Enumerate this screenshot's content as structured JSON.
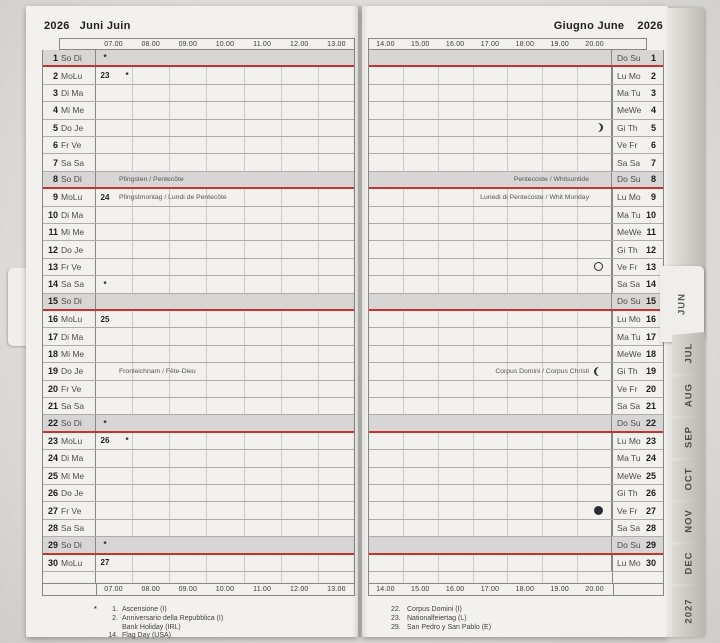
{
  "left_page": {
    "year": "2026",
    "months": "Juni Juin",
    "time_labels": [
      "07.00",
      "08.00",
      "09.00",
      "10.00",
      "11.00",
      "12.00",
      "13.00"
    ],
    "days": [
      {
        "n": "1",
        "label": "So Di",
        "sun": true,
        "m1": "*"
      },
      {
        "n": "2",
        "label": "MoLu",
        "m1": "23",
        "m2": "*"
      },
      {
        "n": "3",
        "label": "Di Ma"
      },
      {
        "n": "4",
        "label": "Mi Me"
      },
      {
        "n": "5",
        "label": "Do Je"
      },
      {
        "n": "6",
        "label": "Fr Ve"
      },
      {
        "n": "7",
        "label": "Sa Sa"
      },
      {
        "n": "8",
        "label": "So Di",
        "sun": true,
        "note": "Pfingsten / Pentecôte"
      },
      {
        "n": "9",
        "label": "MoLu",
        "m1": "24",
        "note": "Pfingstmontag / Lundi de Pentecôte"
      },
      {
        "n": "10",
        "label": "Di Ma"
      },
      {
        "n": "11",
        "label": "Mi Me"
      },
      {
        "n": "12",
        "label": "Do Je"
      },
      {
        "n": "13",
        "label": "Fr Ve"
      },
      {
        "n": "14",
        "label": "Sa Sa",
        "m1": "*"
      },
      {
        "n": "15",
        "label": "So Di",
        "sun": true
      },
      {
        "n": "16",
        "label": "MoLu",
        "m1": "25"
      },
      {
        "n": "17",
        "label": "Di Ma"
      },
      {
        "n": "18",
        "label": "Mi Me"
      },
      {
        "n": "19",
        "label": "Do Je",
        "note": "Fronleichnam / Fête-Dieu"
      },
      {
        "n": "20",
        "label": "Fr Ve"
      },
      {
        "n": "21",
        "label": "Sa Sa"
      },
      {
        "n": "22",
        "label": "So Di",
        "sun": true,
        "m1": "*"
      },
      {
        "n": "23",
        "label": "MoLu",
        "m1": "26",
        "m2": "*"
      },
      {
        "n": "24",
        "label": "Di Ma"
      },
      {
        "n": "25",
        "label": "Mi Me"
      },
      {
        "n": "26",
        "label": "Do Je"
      },
      {
        "n": "27",
        "label": "Fr Ve"
      },
      {
        "n": "28",
        "label": "Sa Sa"
      },
      {
        "n": "29",
        "label": "So Di",
        "sun": true,
        "m1": "*"
      },
      {
        "n": "30",
        "label": "MoLu",
        "m1": "27"
      }
    ],
    "footnotes": [
      {
        "sym": "*",
        "num": "1.",
        "text": "Ascensione (I)"
      },
      {
        "sym": "",
        "num": "2.",
        "text": "Anniversario della Repubblica (I)"
      },
      {
        "sym": "",
        "num": "",
        "text": "Bank Holiday (IRL)"
      },
      {
        "sym": "",
        "num": "14.",
        "text": "Flag Day (USA)"
      }
    ]
  },
  "right_page": {
    "months": "Giugno June",
    "year": "2026",
    "time_labels": [
      "14.00",
      "15.00",
      "16.00",
      "17.00",
      "18.00",
      "19.00",
      "20.00"
    ],
    "days": [
      {
        "n": "1",
        "label": "Do Su",
        "sun": true
      },
      {
        "n": "2",
        "label": "Lu Mo"
      },
      {
        "n": "3",
        "label": "Ma Tu"
      },
      {
        "n": "4",
        "label": "MeWe"
      },
      {
        "n": "5",
        "label": "Gi Th",
        "moon": "crescent-right"
      },
      {
        "n": "6",
        "label": "Ve Fr"
      },
      {
        "n": "7",
        "label": "Sa Sa"
      },
      {
        "n": "8",
        "label": "Do Su",
        "sun": true,
        "note": "Pentecoste / Whitsuntide"
      },
      {
        "n": "9",
        "label": "Lu Mo",
        "note": "Lunedi di Pentecoste / Whit Monday"
      },
      {
        "n": "10",
        "label": "Ma Tu"
      },
      {
        "n": "11",
        "label": "MeWe"
      },
      {
        "n": "12",
        "label": "Gi Th"
      },
      {
        "n": "13",
        "label": "Ve Fr",
        "moon": "circle-open"
      },
      {
        "n": "14",
        "label": "Sa Sa"
      },
      {
        "n": "15",
        "label": "Do Su",
        "sun": true
      },
      {
        "n": "16",
        "label": "Lu Mo"
      },
      {
        "n": "17",
        "label": "Ma Tu"
      },
      {
        "n": "18",
        "label": "MeWe"
      },
      {
        "n": "19",
        "label": "Gi Th",
        "note": "Corpus Domini / Corpus Christi",
        "moon": "crescent-left"
      },
      {
        "n": "20",
        "label": "Ve Fr"
      },
      {
        "n": "21",
        "label": "Sa Sa"
      },
      {
        "n": "22",
        "label": "Do Su",
        "sun": true
      },
      {
        "n": "23",
        "label": "Lu Mo"
      },
      {
        "n": "24",
        "label": "Ma Tu"
      },
      {
        "n": "25",
        "label": "MeWe"
      },
      {
        "n": "26",
        "label": "Gi Th"
      },
      {
        "n": "27",
        "label": "Ve Fr",
        "moon": "circle-filled"
      },
      {
        "n": "28",
        "label": "Sa Sa"
      },
      {
        "n": "29",
        "label": "Do Su",
        "sun": true
      },
      {
        "n": "30",
        "label": "Lu Mo"
      }
    ],
    "footnotes": [
      {
        "sym": "",
        "num": "22.",
        "text": "Corpus Domini (I)"
      },
      {
        "sym": "",
        "num": "23.",
        "text": "Nationalfeiertag (L)"
      },
      {
        "sym": "",
        "num": "29.",
        "text": "San Pedro y San Pablo (E)"
      }
    ]
  },
  "tabs": {
    "current": "JUN",
    "stack": [
      "JUL",
      "AUG",
      "SEP",
      "OCT",
      "NOV",
      "DEC",
      "2027"
    ]
  },
  "colors": {
    "page": "#f2f1ee",
    "sunday_row": "#d8d6d4",
    "holiday_rule_red": "#c2362f",
    "grid_line": "#aaacae",
    "tab_face": "#c8c5c0"
  }
}
